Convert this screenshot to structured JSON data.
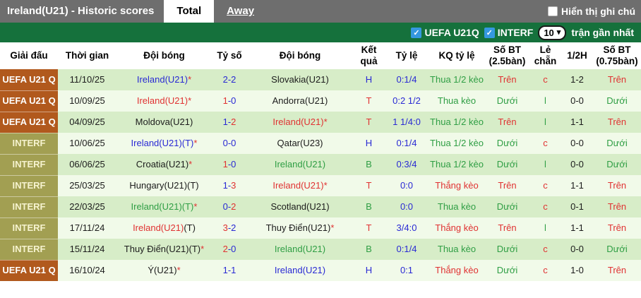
{
  "header_bar": {
    "title": "Ireland(U21) - Historic scores",
    "tabs": [
      {
        "label": "Total",
        "active": true
      },
      {
        "label": "Away",
        "active": false
      }
    ],
    "note_checkbox_label": "Hiển thị ghi chú",
    "note_checkbox_checked": false
  },
  "filter_bar": {
    "checkboxes": [
      {
        "label": "UEFA U21Q",
        "checked": true
      },
      {
        "label": "INTERF",
        "checked": true
      }
    ],
    "matches_select": {
      "value": "10"
    },
    "matches_suffix": "trận gần nhất"
  },
  "icons": {
    "checkbox_check": "✓",
    "chevron_down": "▾"
  },
  "colors": {
    "bar_gray": "#6e6e6e",
    "bar_green": "#15713c",
    "uefa_badge": "#b1591d",
    "interf_badge": "#a29f52",
    "row_dark": "#d7edc8",
    "row_light": "#f1fae9",
    "win_red": "#e03232",
    "draw_blue": "#2929d4",
    "loss_green": "#2f9e44",
    "checkbox_blue": "#3598e0"
  },
  "table": {
    "columns": [
      "Giải đấu",
      "Thời gian",
      "Đội bóng",
      "Tỷ số",
      "Đội bóng",
      "Kết quả",
      "Tỷ lệ",
      "KQ tỷ lệ",
      "Số BT (2.5bàn)",
      "Lẻ chẵn",
      "1/2H",
      "Số BT (0.75bàn)"
    ],
    "rows": [
      {
        "league": "UEFA U21 Q",
        "league_type": "uefa",
        "date": "11/10/25",
        "home": [
          {
            "t": "Ireland(U21)",
            "c": "blue"
          },
          {
            "t": "*",
            "c": "red"
          }
        ],
        "score": {
          "h": "2",
          "a": "2",
          "hc": "blue",
          "ac": "blue"
        },
        "away": [
          {
            "t": "Slovakia(U21)",
            "c": "black"
          }
        ],
        "result": {
          "t": "H",
          "c": "blue"
        },
        "odds": "0:1/4",
        "odds_result": {
          "t": "Thua 1/2 kèo",
          "c": "green"
        },
        "ou25": {
          "t": "Trên",
          "c": "red"
        },
        "parity": {
          "t": "c",
          "c": "red"
        },
        "half": "1-2",
        "ou075": {
          "t": "Trên",
          "c": "red"
        }
      },
      {
        "league": "UEFA U21 Q",
        "league_type": "uefa",
        "date": "10/09/25",
        "home": [
          {
            "t": "Ireland(U21)",
            "c": "red"
          },
          {
            "t": "*",
            "c": "red"
          }
        ],
        "score": {
          "h": "1",
          "a": "0",
          "hc": "red",
          "ac": "blue"
        },
        "away": [
          {
            "t": "Andorra(U21)",
            "c": "black"
          }
        ],
        "result": {
          "t": "T",
          "c": "red"
        },
        "odds": "0:2 1/2",
        "odds_result": {
          "t": "Thua kèo",
          "c": "green"
        },
        "ou25": {
          "t": "Dưới",
          "c": "green"
        },
        "parity": {
          "t": "l",
          "c": "green"
        },
        "half": "0-0",
        "ou075": {
          "t": "Dưới",
          "c": "green"
        }
      },
      {
        "league": "UEFA U21 Q",
        "league_type": "uefa",
        "date": "04/09/25",
        "home": [
          {
            "t": "Moldova(U21)",
            "c": "black"
          }
        ],
        "score": {
          "h": "1",
          "a": "2",
          "hc": "blue",
          "ac": "red"
        },
        "away": [
          {
            "t": "Ireland(U21)",
            "c": "red"
          },
          {
            "t": "*",
            "c": "red"
          }
        ],
        "result": {
          "t": "T",
          "c": "red"
        },
        "odds": "1 1/4:0",
        "odds_result": {
          "t": "Thua 1/2 kèo",
          "c": "green"
        },
        "ou25": {
          "t": "Trên",
          "c": "red"
        },
        "parity": {
          "t": "l",
          "c": "green"
        },
        "half": "1-1",
        "ou075": {
          "t": "Trên",
          "c": "red"
        }
      },
      {
        "league": "INTERF",
        "league_type": "interf",
        "date": "10/06/25",
        "home": [
          {
            "t": "Ireland(U21)(T)",
            "c": "blue"
          },
          {
            "t": "*",
            "c": "red"
          }
        ],
        "score": {
          "h": "0",
          "a": "0",
          "hc": "blue",
          "ac": "blue"
        },
        "away": [
          {
            "t": "Qatar(U23)",
            "c": "black"
          }
        ],
        "result": {
          "t": "H",
          "c": "blue"
        },
        "odds": "0:1/4",
        "odds_result": {
          "t": "Thua 1/2 kèo",
          "c": "green"
        },
        "ou25": {
          "t": "Dưới",
          "c": "green"
        },
        "parity": {
          "t": "c",
          "c": "red"
        },
        "half": "0-0",
        "ou075": {
          "t": "Dưới",
          "c": "green"
        }
      },
      {
        "league": "INTERF",
        "league_type": "interf",
        "date": "06/06/25",
        "home": [
          {
            "t": "Croatia(U21)",
            "c": "black"
          },
          {
            "t": "*",
            "c": "red"
          }
        ],
        "score": {
          "h": "1",
          "a": "0",
          "hc": "red",
          "ac": "blue"
        },
        "away": [
          {
            "t": "Ireland(U21)",
            "c": "green"
          }
        ],
        "result": {
          "t": "B",
          "c": "green"
        },
        "odds": "0:3/4",
        "odds_result": {
          "t": "Thua 1/2 kèo",
          "c": "green"
        },
        "ou25": {
          "t": "Dưới",
          "c": "green"
        },
        "parity": {
          "t": "l",
          "c": "green"
        },
        "half": "0-0",
        "ou075": {
          "t": "Dưới",
          "c": "green"
        }
      },
      {
        "league": "INTERF",
        "league_type": "interf",
        "date": "25/03/25",
        "home": [
          {
            "t": "Hungary(U21)(T)",
            "c": "black"
          }
        ],
        "score": {
          "h": "1",
          "a": "3",
          "hc": "blue",
          "ac": "red"
        },
        "away": [
          {
            "t": "Ireland(U21)",
            "c": "red"
          },
          {
            "t": "*",
            "c": "red"
          }
        ],
        "result": {
          "t": "T",
          "c": "red"
        },
        "odds": "0:0",
        "odds_result": {
          "t": "Thắng kèo",
          "c": "red"
        },
        "ou25": {
          "t": "Trên",
          "c": "red"
        },
        "parity": {
          "t": "c",
          "c": "red"
        },
        "half": "1-1",
        "ou075": {
          "t": "Trên",
          "c": "red"
        }
      },
      {
        "league": "INTERF",
        "league_type": "interf",
        "date": "22/03/25",
        "home": [
          {
            "t": "Ireland(U21)(T)",
            "c": "green"
          },
          {
            "t": "*",
            "c": "red"
          }
        ],
        "score": {
          "h": "0",
          "a": "2",
          "hc": "blue",
          "ac": "red"
        },
        "away": [
          {
            "t": "Scotland(U21)",
            "c": "black"
          }
        ],
        "result": {
          "t": "B",
          "c": "green"
        },
        "odds": "0:0",
        "odds_result": {
          "t": "Thua kèo",
          "c": "green"
        },
        "ou25": {
          "t": "Dưới",
          "c": "green"
        },
        "parity": {
          "t": "c",
          "c": "red"
        },
        "half": "0-1",
        "ou075": {
          "t": "Trên",
          "c": "red"
        }
      },
      {
        "league": "INTERF",
        "league_type": "interf",
        "date": "17/11/24",
        "home": [
          {
            "t": "Ireland(U21)",
            "c": "red"
          },
          {
            "t": "(T)",
            "c": "black"
          }
        ],
        "score": {
          "h": "3",
          "a": "2",
          "hc": "red",
          "ac": "blue"
        },
        "away": [
          {
            "t": "Thuy Điển(U21)",
            "c": "black"
          },
          {
            "t": "*",
            "c": "red"
          }
        ],
        "result": {
          "t": "T",
          "c": "red"
        },
        "odds": "3/4:0",
        "odds_result": {
          "t": "Thắng kèo",
          "c": "red"
        },
        "ou25": {
          "t": "Trên",
          "c": "red"
        },
        "parity": {
          "t": "l",
          "c": "green"
        },
        "half": "1-1",
        "ou075": {
          "t": "Trên",
          "c": "red"
        }
      },
      {
        "league": "INTERF",
        "league_type": "interf",
        "date": "15/11/24",
        "home": [
          {
            "t": "Thuy Điển(U21)(T)",
            "c": "black"
          },
          {
            "t": "*",
            "c": "red"
          }
        ],
        "score": {
          "h": "2",
          "a": "0",
          "hc": "red",
          "ac": "blue"
        },
        "away": [
          {
            "t": "Ireland(U21)",
            "c": "green"
          }
        ],
        "result": {
          "t": "B",
          "c": "green"
        },
        "odds": "0:1/4",
        "odds_result": {
          "t": "Thua kèo",
          "c": "green"
        },
        "ou25": {
          "t": "Dưới",
          "c": "green"
        },
        "parity": {
          "t": "c",
          "c": "red"
        },
        "half": "0-0",
        "ou075": {
          "t": "Dưới",
          "c": "green"
        }
      },
      {
        "league": "UEFA U21 Q",
        "league_type": "uefa",
        "date": "16/10/24",
        "home": [
          {
            "t": "Ý(U21)",
            "c": "black"
          },
          {
            "t": "*",
            "c": "red"
          }
        ],
        "score": {
          "h": "1",
          "a": "1",
          "hc": "blue",
          "ac": "blue"
        },
        "away": [
          {
            "t": "Ireland(U21)",
            "c": "blue"
          }
        ],
        "result": {
          "t": "H",
          "c": "blue"
        },
        "odds": "0:1",
        "odds_result": {
          "t": "Thắng kèo",
          "c": "red"
        },
        "ou25": {
          "t": "Dưới",
          "c": "green"
        },
        "parity": {
          "t": "c",
          "c": "red"
        },
        "half": "1-0",
        "ou075": {
          "t": "Trên",
          "c": "red"
        }
      }
    ]
  }
}
